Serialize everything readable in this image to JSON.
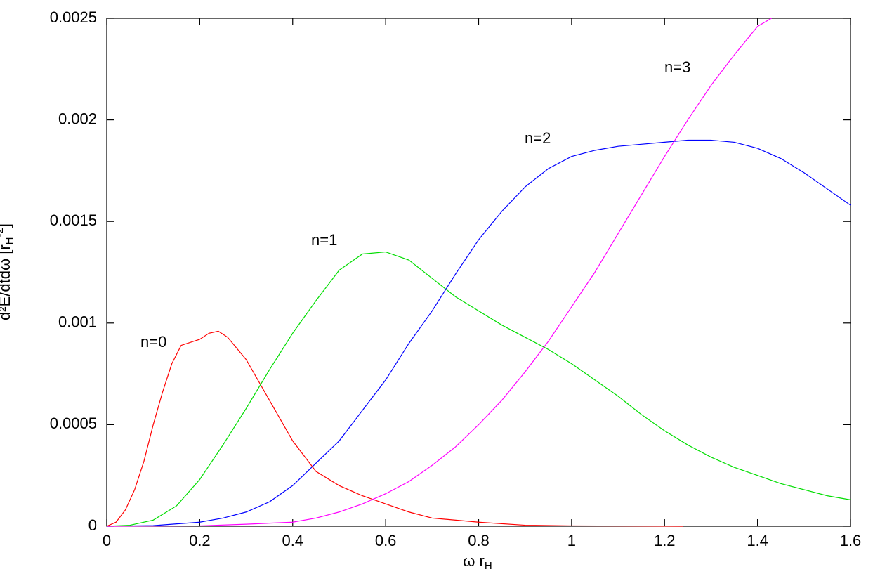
{
  "chart_data": {
    "type": "line",
    "x_label": [
      "ω r",
      "H"
    ],
    "y_label": [
      "d²E/dtdω  [r",
      "H",
      "-2",
      "]"
    ],
    "xlim": [
      0,
      1.6
    ],
    "ylim": [
      0,
      0.0025
    ],
    "xticks": [
      0,
      0.2,
      0.4,
      0.6,
      0.8,
      1,
      1.2,
      1.4,
      1.6
    ],
    "yticks": [
      0,
      0.0005,
      0.001,
      0.0015,
      0.002,
      0.0025
    ],
    "series": [
      {
        "name": "n=0",
        "color": "#ff0000",
        "x": [
          0,
          0.02,
          0.04,
          0.06,
          0.08,
          0.1,
          0.12,
          0.14,
          0.16,
          0.2,
          0.22,
          0.24,
          0.26,
          0.3,
          0.35,
          0.4,
          0.45,
          0.5,
          0.55,
          0.6,
          0.65,
          0.7,
          0.8,
          0.9,
          1.0,
          1.24
        ],
        "values": [
          0,
          2e-05,
          8e-05,
          0.00018,
          0.00032,
          0.0005,
          0.00066,
          0.0008,
          0.00089,
          0.00092,
          0.00095,
          0.00096,
          0.00093,
          0.00082,
          0.00062,
          0.00042,
          0.00027,
          0.0002,
          0.00015,
          0.00011,
          7e-05,
          4e-05,
          2e-05,
          5e-06,
          2e-06,
          0
        ]
      },
      {
        "name": "n=1",
        "color": "#00dd00",
        "x": [
          0,
          0.05,
          0.1,
          0.15,
          0.2,
          0.25,
          0.3,
          0.35,
          0.4,
          0.45,
          0.5,
          0.55,
          0.6,
          0.65,
          0.7,
          0.75,
          0.8,
          0.85,
          0.9,
          0.95,
          1.0,
          1.05,
          1.1,
          1.15,
          1.2,
          1.25,
          1.3,
          1.35,
          1.4,
          1.45,
          1.5,
          1.55,
          1.6
        ],
        "values": [
          0,
          5e-06,
          3e-05,
          0.0001,
          0.00023,
          0.0004,
          0.00058,
          0.00077,
          0.00095,
          0.00111,
          0.00126,
          0.00134,
          0.00135,
          0.00131,
          0.00122,
          0.00113,
          0.00106,
          0.00099,
          0.00093,
          0.00087,
          0.0008,
          0.00072,
          0.00064,
          0.00055,
          0.00047,
          0.0004,
          0.00034,
          0.00029,
          0.00025,
          0.00021,
          0.00018,
          0.00015,
          0.00013
        ]
      },
      {
        "name": "n=2",
        "color": "#0000ff",
        "x": [
          0,
          0.1,
          0.2,
          0.25,
          0.3,
          0.35,
          0.4,
          0.45,
          0.5,
          0.55,
          0.6,
          0.65,
          0.7,
          0.75,
          0.8,
          0.85,
          0.9,
          0.95,
          1.0,
          1.05,
          1.1,
          1.15,
          1.2,
          1.25,
          1.3,
          1.35,
          1.4,
          1.45,
          1.5,
          1.55,
          1.6
        ],
        "values": [
          0,
          3e-06,
          2e-05,
          4e-05,
          7e-05,
          0.00012,
          0.0002,
          0.00031,
          0.00042,
          0.00057,
          0.00072,
          0.0009,
          0.00106,
          0.00124,
          0.00141,
          0.00155,
          0.00167,
          0.00176,
          0.00182,
          0.00185,
          0.00187,
          0.00188,
          0.00189,
          0.0019,
          0.0019,
          0.00189,
          0.00186,
          0.00181,
          0.00174,
          0.00166,
          0.00158
        ]
      },
      {
        "name": "n=3",
        "color": "#ff00ff",
        "x": [
          0,
          0.2,
          0.3,
          0.4,
          0.45,
          0.5,
          0.55,
          0.6,
          0.65,
          0.7,
          0.75,
          0.8,
          0.85,
          0.9,
          0.95,
          1.0,
          1.05,
          1.1,
          1.15,
          1.2,
          1.25,
          1.3,
          1.35,
          1.4,
          1.43
        ],
        "values": [
          0,
          2e-06,
          1e-05,
          2e-05,
          4e-05,
          7e-05,
          0.00011,
          0.00016,
          0.00022,
          0.0003,
          0.00039,
          0.0005,
          0.00062,
          0.00076,
          0.00091,
          0.00108,
          0.00125,
          0.00144,
          0.00163,
          0.00182,
          0.002,
          0.00217,
          0.00232,
          0.00246,
          0.0025
        ]
      }
    ]
  }
}
